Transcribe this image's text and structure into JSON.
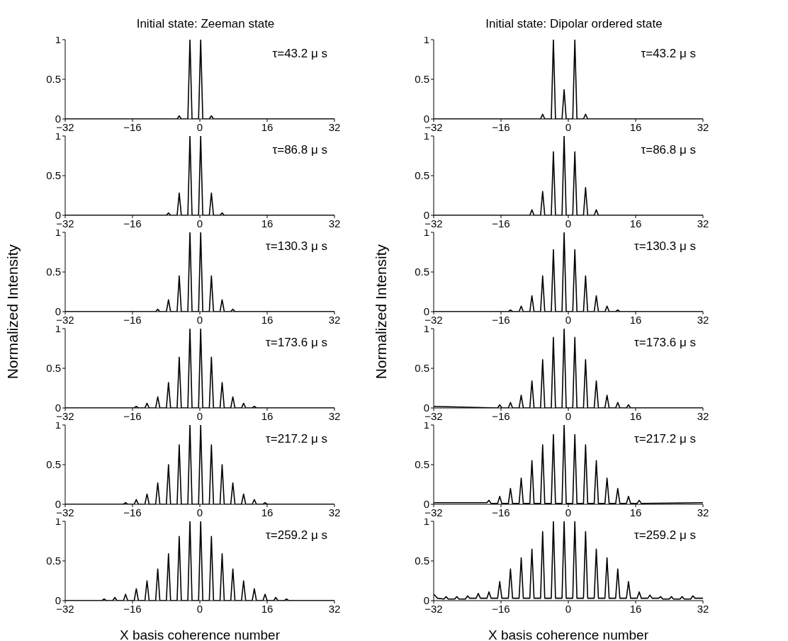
{
  "chart_data": [
    {
      "type": "line",
      "title": "Initial state: Zeeman state",
      "annotations": [
        "τ=43.2 μ s"
      ],
      "color": "#000000",
      "xlim": [
        -32,
        32
      ],
      "xticks": [
        -32,
        -16,
        0,
        16,
        32
      ],
      "ylim": [
        0,
        1
      ],
      "yticks": [
        0,
        0.5,
        1
      ],
      "x": [
        -32,
        -5.4,
        -4.9,
        -4.4,
        -2.85,
        -2.35,
        -1.85,
        -0.3,
        0.2,
        0.7,
        2.25,
        2.75,
        3.25,
        32
      ],
      "values": [
        0,
        0,
        0.04,
        0,
        0,
        1,
        0,
        0,
        1,
        0,
        0,
        0.04,
        0,
        0
      ]
    },
    {
      "type": "line",
      "annotations": [
        "τ=86.8 μ s"
      ],
      "color": "#000000",
      "xlim": [
        -32,
        32
      ],
      "xticks": [
        -32,
        -16,
        0,
        16,
        32
      ],
      "ylim": [
        0,
        1
      ],
      "yticks": [
        0,
        0.5,
        1
      ],
      "x": [
        -32,
        -7.95,
        -7.45,
        -6.95,
        -5.4,
        -4.9,
        -4.4,
        -2.85,
        -2.35,
        -1.85,
        -0.3,
        0.2,
        0.7,
        2.25,
        2.75,
        3.25,
        4.8,
        5.3,
        5.8,
        32
      ],
      "values": [
        0,
        0,
        0.03,
        0,
        0,
        0.28,
        0,
        0,
        1,
        0,
        0,
        1,
        0,
        0,
        0.28,
        0,
        0,
        0.03,
        0,
        0
      ]
    },
    {
      "type": "line",
      "ylabel": "Normalized Intensity",
      "annotations": [
        "τ=130.3 μ s"
      ],
      "color": "#000000",
      "xlim": [
        -32,
        32
      ],
      "xticks": [
        -32,
        -16,
        0,
        16,
        32
      ],
      "ylim": [
        0,
        1
      ],
      "yticks": [
        0,
        0.5,
        1
      ],
      "x": [
        -32,
        -10.5,
        -10,
        -9.5,
        -7.95,
        -7.45,
        -6.95,
        -5.4,
        -4.9,
        -4.4,
        -2.85,
        -2.35,
        -1.85,
        -0.3,
        0.2,
        0.7,
        2.25,
        2.75,
        3.25,
        4.8,
        5.3,
        5.8,
        7.35,
        7.85,
        8.35,
        32
      ],
      "values": [
        0,
        0,
        0.03,
        0,
        0,
        0.15,
        0,
        0,
        0.45,
        0,
        0,
        1,
        0,
        0,
        1,
        0,
        0,
        0.45,
        0,
        0,
        0.15,
        0,
        0,
        0.03,
        0,
        0
      ]
    },
    {
      "type": "line",
      "annotations": [
        "τ=173.6 μ s"
      ],
      "color": "#000000",
      "xlim": [
        -32,
        32
      ],
      "xticks": [
        -32,
        -16,
        0,
        16,
        32
      ],
      "ylim": [
        0,
        1
      ],
      "yticks": [
        0,
        0.5,
        1
      ],
      "x": [
        -32,
        -15.6,
        -15.1,
        -14.6,
        -13.05,
        -12.55,
        -12.05,
        -10.5,
        -10,
        -9.5,
        -7.95,
        -7.45,
        -6.95,
        -5.4,
        -4.9,
        -4.4,
        -2.85,
        -2.35,
        -1.85,
        -0.3,
        0.2,
        0.7,
        2.25,
        2.75,
        3.25,
        4.8,
        5.3,
        5.8,
        7.35,
        7.85,
        8.35,
        9.9,
        10.4,
        10.9,
        12.45,
        12.95,
        13.45,
        32
      ],
      "values": [
        0,
        0,
        0.02,
        0,
        0,
        0.06,
        0,
        0,
        0.14,
        0,
        0,
        0.32,
        0,
        0,
        0.64,
        0,
        0,
        1,
        0,
        0,
        1,
        0,
        0,
        0.64,
        0,
        0,
        0.32,
        0,
        0,
        0.14,
        0,
        0,
        0.06,
        0,
        0,
        0.02,
        0,
        0
      ]
    },
    {
      "type": "line",
      "annotations": [
        "τ=217.2 μ s"
      ],
      "color": "#000000",
      "xlim": [
        -32,
        32
      ],
      "xticks": [
        -32,
        -16,
        0,
        16,
        32
      ],
      "ylim": [
        0,
        1
      ],
      "yticks": [
        0,
        0.5,
        1
      ],
      "x": [
        -32,
        -18.15,
        -17.65,
        -17.15,
        -15.6,
        -15.1,
        -14.6,
        -13.05,
        -12.55,
        -12.05,
        -10.5,
        -10,
        -9.5,
        -7.95,
        -7.45,
        -6.95,
        -5.4,
        -4.9,
        -4.4,
        -2.85,
        -2.35,
        -1.85,
        -0.3,
        0.2,
        0.7,
        2.25,
        2.75,
        3.25,
        4.8,
        5.3,
        5.8,
        7.35,
        7.85,
        8.35,
        9.9,
        10.4,
        10.9,
        12.45,
        12.95,
        13.45,
        15,
        15.5,
        16,
        32
      ],
      "values": [
        0,
        0,
        0.02,
        0,
        0,
        0.06,
        0,
        0,
        0.13,
        0,
        0,
        0.27,
        0,
        0,
        0.5,
        0,
        0,
        0.75,
        0,
        0,
        1,
        0,
        0,
        1,
        0,
        0,
        0.75,
        0,
        0,
        0.5,
        0,
        0,
        0.27,
        0,
        0,
        0.13,
        0,
        0,
        0.06,
        0,
        0,
        0.02,
        0,
        0
      ]
    },
    {
      "type": "line",
      "xlabel": "X basis coherence number",
      "annotations": [
        "τ=259.2 μ s"
      ],
      "color": "#000000",
      "xlim": [
        -32,
        32
      ],
      "xticks": [
        -32,
        -16,
        0,
        16,
        32
      ],
      "ylim": [
        0,
        1
      ],
      "yticks": [
        0,
        0.5,
        1
      ],
      "x": [
        -32,
        -23.25,
        -22.75,
        -22.25,
        -20.7,
        -20.2,
        -19.7,
        -18.15,
        -17.65,
        -17.15,
        -15.6,
        -15.1,
        -14.6,
        -13.05,
        -12.55,
        -12.05,
        -10.5,
        -10,
        -9.5,
        -7.95,
        -7.45,
        -6.95,
        -5.4,
        -4.9,
        -4.4,
        -2.85,
        -2.35,
        -1.85,
        -0.3,
        0.2,
        0.7,
        2.25,
        2.75,
        3.25,
        4.8,
        5.3,
        5.8,
        7.35,
        7.85,
        8.35,
        9.9,
        10.4,
        10.9,
        12.45,
        12.95,
        13.45,
        15,
        15.5,
        16,
        17.55,
        18.05,
        18.55,
        20.1,
        20.6,
        21.1,
        32
      ],
      "values": [
        0,
        0,
        0.02,
        0,
        0,
        0.04,
        0,
        0,
        0.08,
        0,
        0,
        0.15,
        0,
        0,
        0.25,
        0,
        0,
        0.4,
        0,
        0,
        0.59,
        0,
        0,
        0.81,
        0,
        0,
        1,
        0,
        0,
        1,
        0,
        0,
        0.81,
        0,
        0,
        0.59,
        0,
        0,
        0.4,
        0,
        0,
        0.25,
        0,
        0,
        0.15,
        0,
        0,
        0.08,
        0,
        0,
        0.04,
        0,
        0,
        0.02,
        0,
        0
      ]
    },
    {
      "type": "line",
      "title": "Initial state: Dipolar ordered state",
      "annotations": [
        "τ=43.2 μ s"
      ],
      "color": "#000000",
      "xlim": [
        -32,
        32
      ],
      "xticks": [
        -32,
        -16,
        0,
        16,
        32
      ],
      "ylim": [
        0,
        1
      ],
      "yticks": [
        0,
        0.5,
        1
      ],
      "x": [
        -32,
        -6.6,
        -6.1,
        -5.6,
        -4.05,
        -3.55,
        -3.05,
        -1.5,
        -1,
        -0.5,
        1.05,
        1.55,
        2.05,
        3.6,
        4.1,
        4.6,
        32
      ],
      "values": [
        0,
        0,
        0.06,
        0,
        0,
        1,
        0,
        0,
        0.37,
        0,
        0,
        1,
        0,
        0,
        0.06,
        0,
        0
      ]
    },
    {
      "type": "line",
      "annotations": [
        "τ=86.8 μ s"
      ],
      "color": "#000000",
      "xlim": [
        -32,
        32
      ],
      "xticks": [
        -32,
        -16,
        0,
        16,
        32
      ],
      "ylim": [
        0,
        1
      ],
      "yticks": [
        0,
        0.5,
        1
      ],
      "x": [
        -32,
        -9.15,
        -8.65,
        -8.15,
        -6.6,
        -6.1,
        -5.6,
        -4.05,
        -3.55,
        -3.05,
        -1.5,
        -1,
        -0.5,
        1.05,
        1.55,
        2.05,
        3.6,
        4.1,
        4.6,
        6.15,
        6.65,
        7.15,
        32
      ],
      "values": [
        0,
        0,
        0.07,
        0,
        0,
        0.3,
        0,
        0,
        0.8,
        0,
        0,
        1,
        0,
        0,
        0.8,
        0,
        0,
        0.35,
        0,
        0,
        0.07,
        0,
        0
      ]
    },
    {
      "type": "line",
      "ylabel": "Normalized Intensity",
      "annotations": [
        "τ=130.3 μ s"
      ],
      "color": "#000000",
      "xlim": [
        -32,
        32
      ],
      "xticks": [
        -32,
        -16,
        0,
        16,
        32
      ],
      "ylim": [
        0,
        1
      ],
      "yticks": [
        0,
        0.5,
        1
      ],
      "x": [
        -32,
        -14.25,
        -13.75,
        -13.25,
        -11.7,
        -11.2,
        -10.7,
        -9.15,
        -8.65,
        -8.15,
        -6.6,
        -6.1,
        -5.6,
        -4.05,
        -3.55,
        -3.05,
        -1.5,
        -1,
        -0.5,
        1.05,
        1.55,
        2.05,
        3.6,
        4.1,
        4.6,
        6.15,
        6.65,
        7.15,
        8.7,
        9.2,
        9.7,
        11.25,
        11.75,
        12.25,
        32
      ],
      "values": [
        0,
        0,
        0.02,
        0,
        0,
        0.07,
        0,
        0,
        0.2,
        0,
        0,
        0.45,
        0,
        0,
        0.78,
        0,
        0,
        1,
        0,
        0,
        0.78,
        0,
        0,
        0.45,
        0,
        0,
        0.2,
        0,
        0,
        0.07,
        0,
        0,
        0.02,
        0,
        0
      ]
    },
    {
      "type": "line",
      "annotations": [
        "τ=173.6 μ s"
      ],
      "color": "#000000",
      "xlim": [
        -32,
        32
      ],
      "xticks": [
        -32,
        -16,
        0,
        16,
        32
      ],
      "ylim": [
        0,
        1
      ],
      "yticks": [
        0,
        0.5,
        1
      ],
      "x": [
        -32,
        -16.8,
        -16.3,
        -15.8,
        -14.25,
        -13.75,
        -13.25,
        -11.7,
        -11.2,
        -10.7,
        -9.15,
        -8.65,
        -8.15,
        -6.6,
        -6.1,
        -5.6,
        -4.05,
        -3.55,
        -3.05,
        -1.5,
        -1,
        -0.5,
        1.05,
        1.55,
        2.05,
        3.6,
        4.1,
        4.6,
        6.15,
        6.65,
        7.15,
        8.7,
        9.2,
        9.7,
        11.25,
        11.75,
        12.25,
        13.8,
        14.3,
        14.8,
        32
      ],
      "values": [
        0.02,
        0,
        0.04,
        0,
        0,
        0.07,
        0,
        0,
        0.16,
        0,
        0,
        0.34,
        0,
        0,
        0.61,
        0,
        0,
        0.89,
        0,
        0,
        1,
        0,
        0,
        0.89,
        0,
        0,
        0.61,
        0,
        0,
        0.34,
        0,
        0,
        0.16,
        0,
        0,
        0.07,
        0,
        0,
        0.04,
        0,
        0
      ]
    },
    {
      "type": "line",
      "annotations": [
        "τ=217.2 μ s"
      ],
      "color": "#000000",
      "xlim": [
        -32,
        32
      ],
      "xticks": [
        -32,
        -16,
        0,
        16,
        32
      ],
      "ylim": [
        0,
        1
      ],
      "yticks": [
        0,
        0.5,
        1
      ],
      "x": [
        -32,
        -19.35,
        -18.85,
        -18.35,
        -16.8,
        -16.3,
        -15.8,
        -14.25,
        -13.75,
        -13.25,
        -11.7,
        -11.2,
        -10.7,
        -9.15,
        -8.65,
        -8.15,
        -6.6,
        -6.1,
        -5.6,
        -4.05,
        -3.55,
        -3.05,
        -1.5,
        -1,
        -0.5,
        1.05,
        1.55,
        2.05,
        3.6,
        4.1,
        4.6,
        6.15,
        6.65,
        7.15,
        8.7,
        9.2,
        9.7,
        11.25,
        11.75,
        12.25,
        13.8,
        14.3,
        14.8,
        16.35,
        16.85,
        17.35,
        32
      ],
      "values": [
        0.02,
        0.02,
        0.05,
        0.01,
        0.01,
        0.1,
        0.01,
        0.01,
        0.2,
        0.01,
        0.01,
        0.33,
        0.01,
        0.01,
        0.55,
        0.01,
        0.01,
        0.75,
        0.01,
        0.01,
        0.88,
        0.01,
        0.01,
        1,
        0.01,
        0.01,
        0.88,
        0.01,
        0.01,
        0.75,
        0.01,
        0.01,
        0.55,
        0.01,
        0.01,
        0.33,
        0.01,
        0.01,
        0.2,
        0.01,
        0.01,
        0.1,
        0.01,
        0.01,
        0.05,
        0.01,
        0.02
      ]
    },
    {
      "type": "line",
      "xlabel": "X basis coherence number",
      "annotations": [
        "τ=259.2 μ s"
      ],
      "color": "#000000",
      "xlim": [
        -32,
        32
      ],
      "xticks": [
        -32,
        -16,
        0,
        16,
        32
      ],
      "ylim": [
        0,
        1
      ],
      "yticks": [
        0,
        0.5,
        1
      ],
      "x": [
        -32,
        -31.6,
        -31.1,
        -29.55,
        -29.05,
        -28.55,
        -27,
        -26.5,
        -26,
        -24.45,
        -23.95,
        -23.45,
        -21.9,
        -21.4,
        -20.9,
        -19.35,
        -18.85,
        -18.35,
        -16.8,
        -16.3,
        -15.8,
        -14.25,
        -13.75,
        -13.25,
        -11.7,
        -11.2,
        -10.7,
        -9.15,
        -8.65,
        -8.15,
        -6.6,
        -6.1,
        -5.6,
        -4.05,
        -3.55,
        -3.05,
        -1.5,
        -1,
        -0.5,
        1.05,
        1.55,
        2.05,
        3.6,
        4.1,
        4.6,
        6.15,
        6.65,
        7.15,
        8.7,
        9.2,
        9.7,
        11.25,
        11.75,
        12.25,
        13.8,
        14.3,
        14.8,
        16.35,
        16.85,
        17.35,
        18.9,
        19.4,
        19.9,
        21.45,
        21.95,
        22.45,
        24,
        24.5,
        25,
        26.55,
        27.05,
        27.55,
        29.1,
        29.6,
        30.1,
        32
      ],
      "values": [
        0.08,
        0.06,
        0.03,
        0.02,
        0.05,
        0.02,
        0.02,
        0.05,
        0.02,
        0.02,
        0.06,
        0.03,
        0.03,
        0.09,
        0.03,
        0.03,
        0.11,
        0.03,
        0.03,
        0.24,
        0.03,
        0.03,
        0.4,
        0.03,
        0.03,
        0.54,
        0.03,
        0.03,
        0.65,
        0.03,
        0.03,
        0.87,
        0.03,
        0.03,
        1,
        0.03,
        0.03,
        1,
        0.03,
        0.03,
        1,
        0.03,
        0.03,
        0.87,
        0.03,
        0.03,
        0.65,
        0.03,
        0.03,
        0.54,
        0.03,
        0.03,
        0.4,
        0.03,
        0.03,
        0.24,
        0.03,
        0.03,
        0.11,
        0.03,
        0.03,
        0.07,
        0.03,
        0.03,
        0.05,
        0.02,
        0.02,
        0.05,
        0.02,
        0.02,
        0.05,
        0.02,
        0.02,
        0.06,
        0.03,
        0.03
      ]
    }
  ]
}
